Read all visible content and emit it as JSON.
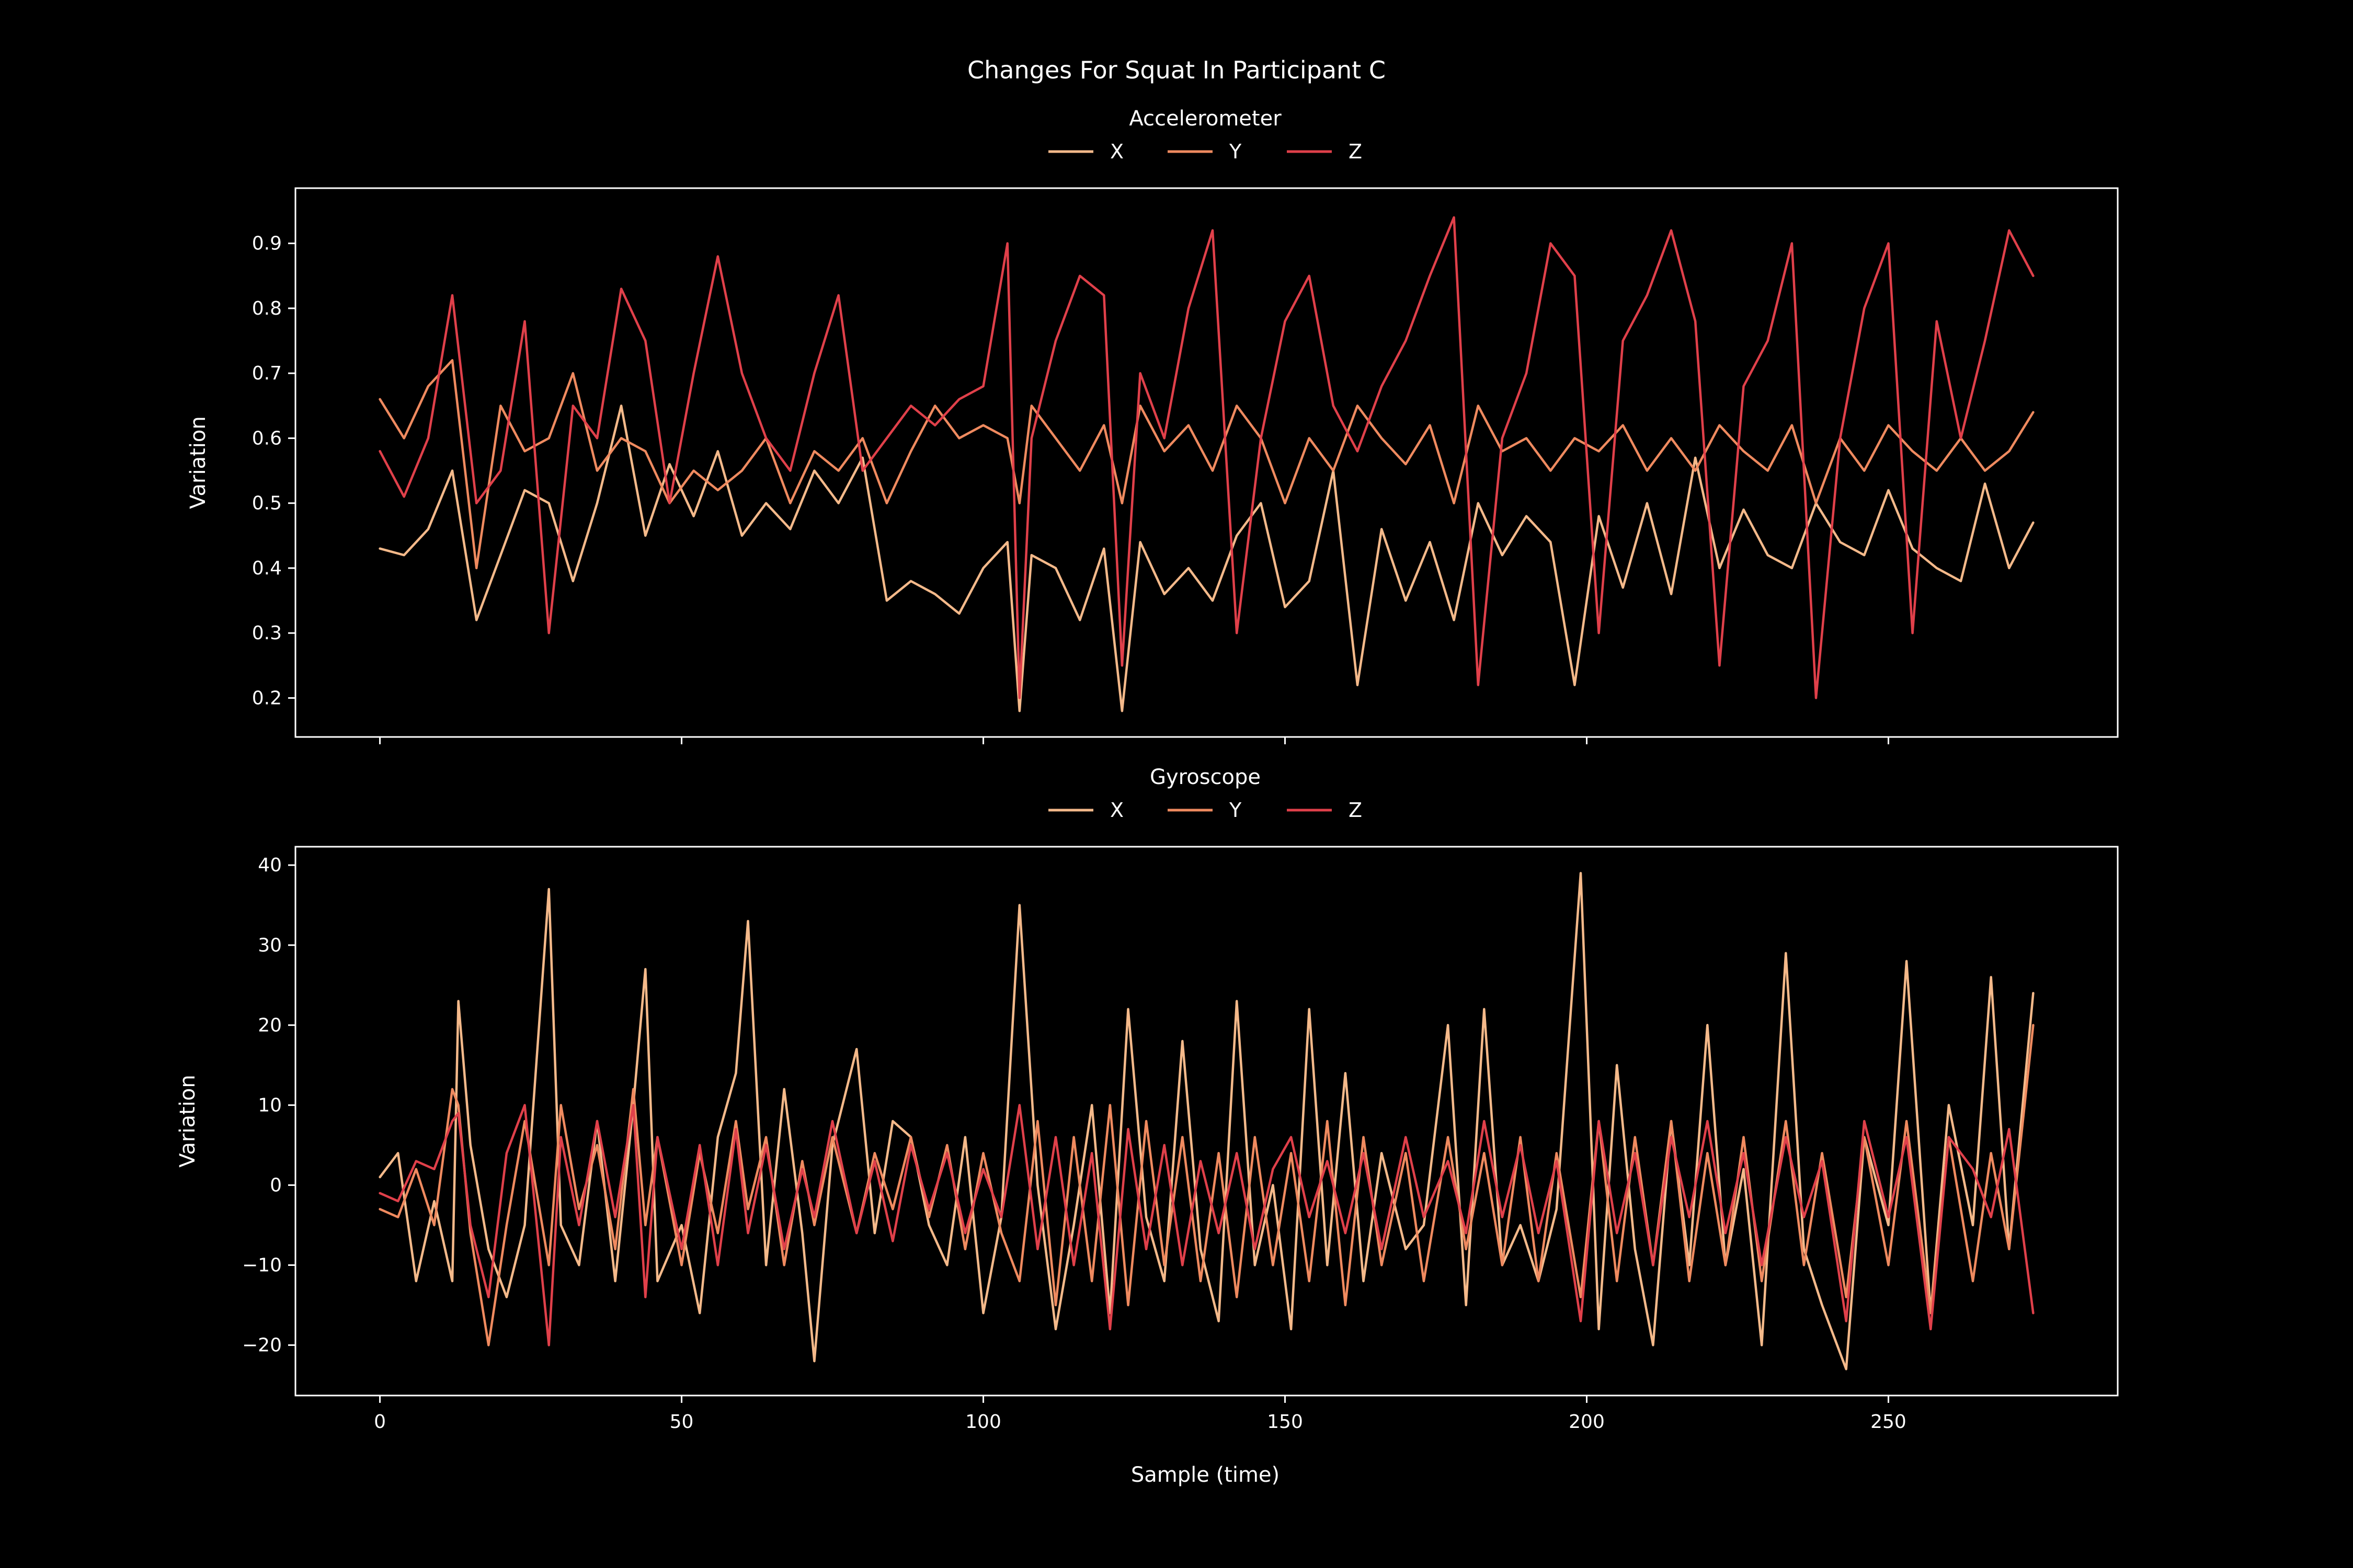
{
  "figure": {
    "title": "Changes For Squat In Participant C",
    "xlabel": "Sample (time)"
  },
  "chart_data": [
    {
      "type": "line",
      "title": "",
      "legend_title": "Accelerometer",
      "legend_placement": "top-center",
      "xlabel": "",
      "ylabel": "Variation",
      "xlim": [
        -14,
        288
      ],
      "ylim": [
        0.14,
        0.985
      ],
      "xticks": [
        0,
        50,
        100,
        150,
        200,
        250
      ],
      "yticks": [
        0.2,
        0.3,
        0.4,
        0.5,
        0.6,
        0.7,
        0.8,
        0.9
      ],
      "ytick_labels": [
        "0.2",
        "0.3",
        "0.4",
        "0.5",
        "0.6",
        "0.7",
        "0.8",
        "0.9"
      ],
      "show_xtick_labels": false,
      "grid": false,
      "series": [
        {
          "name": "X",
          "color": "#f4b98a",
          "x": [
            0,
            4,
            8,
            12,
            16,
            20,
            24,
            28,
            32,
            36,
            40,
            44,
            48,
            52,
            56,
            60,
            64,
            68,
            72,
            76,
            80,
            84,
            88,
            92,
            96,
            100,
            104,
            106,
            108,
            112,
            116,
            120,
            123,
            126,
            130,
            134,
            138,
            142,
            146,
            150,
            154,
            158,
            162,
            166,
            170,
            174,
            178,
            182,
            186,
            190,
            194,
            198,
            202,
            206,
            210,
            214,
            218,
            222,
            226,
            230,
            234,
            238,
            242,
            246,
            250,
            254,
            258,
            262,
            266,
            270,
            274
          ],
          "y": [
            0.43,
            0.42,
            0.46,
            0.55,
            0.32,
            0.42,
            0.52,
            0.5,
            0.38,
            0.5,
            0.65,
            0.45,
            0.56,
            0.48,
            0.58,
            0.45,
            0.5,
            0.46,
            0.55,
            0.5,
            0.57,
            0.35,
            0.38,
            0.36,
            0.33,
            0.4,
            0.44,
            0.18,
            0.42,
            0.4,
            0.32,
            0.43,
            0.18,
            0.44,
            0.36,
            0.4,
            0.35,
            0.45,
            0.5,
            0.34,
            0.38,
            0.55,
            0.22,
            0.46,
            0.35,
            0.44,
            0.32,
            0.5,
            0.42,
            0.48,
            0.44,
            0.22,
            0.48,
            0.37,
            0.5,
            0.36,
            0.57,
            0.4,
            0.49,
            0.42,
            0.4,
            0.5,
            0.44,
            0.42,
            0.52,
            0.43,
            0.4,
            0.38,
            0.53,
            0.4,
            0.47
          ]
        },
        {
          "name": "Y",
          "color": "#ef8a5f",
          "x": [
            0,
            4,
            8,
            12,
            16,
            20,
            24,
            28,
            32,
            36,
            40,
            44,
            48,
            52,
            56,
            60,
            64,
            68,
            72,
            76,
            80,
            84,
            88,
            92,
            96,
            100,
            104,
            106,
            108,
            112,
            116,
            120,
            123,
            126,
            130,
            134,
            138,
            142,
            146,
            150,
            154,
            158,
            162,
            166,
            170,
            174,
            178,
            182,
            186,
            190,
            194,
            198,
            202,
            206,
            210,
            214,
            218,
            222,
            226,
            230,
            234,
            238,
            242,
            246,
            250,
            254,
            258,
            262,
            266,
            270,
            274
          ],
          "y": [
            0.66,
            0.6,
            0.68,
            0.72,
            0.4,
            0.65,
            0.58,
            0.6,
            0.7,
            0.55,
            0.6,
            0.58,
            0.5,
            0.55,
            0.52,
            0.55,
            0.6,
            0.5,
            0.58,
            0.55,
            0.6,
            0.5,
            0.58,
            0.65,
            0.6,
            0.62,
            0.6,
            0.5,
            0.65,
            0.6,
            0.55,
            0.62,
            0.5,
            0.65,
            0.58,
            0.62,
            0.55,
            0.65,
            0.6,
            0.5,
            0.6,
            0.55,
            0.65,
            0.6,
            0.56,
            0.62,
            0.5,
            0.65,
            0.58,
            0.6,
            0.55,
            0.6,
            0.58,
            0.62,
            0.55,
            0.6,
            0.55,
            0.62,
            0.58,
            0.55,
            0.62,
            0.5,
            0.6,
            0.55,
            0.62,
            0.58,
            0.55,
            0.6,
            0.55,
            0.58,
            0.64
          ]
        },
        {
          "name": "Z",
          "color": "#e0404a",
          "x": [
            0,
            4,
            8,
            12,
            16,
            20,
            24,
            28,
            32,
            36,
            40,
            44,
            48,
            52,
            56,
            60,
            64,
            68,
            72,
            76,
            80,
            84,
            88,
            92,
            96,
            100,
            104,
            106,
            108,
            112,
            116,
            120,
            123,
            126,
            130,
            134,
            138,
            142,
            146,
            150,
            154,
            158,
            162,
            166,
            170,
            174,
            178,
            182,
            186,
            190,
            194,
            198,
            202,
            206,
            210,
            214,
            218,
            222,
            226,
            230,
            234,
            238,
            242,
            246,
            250,
            254,
            258,
            262,
            266,
            270,
            274
          ],
          "y": [
            0.58,
            0.51,
            0.6,
            0.82,
            0.5,
            0.55,
            0.78,
            0.3,
            0.65,
            0.6,
            0.83,
            0.75,
            0.5,
            0.7,
            0.88,
            0.7,
            0.6,
            0.55,
            0.7,
            0.82,
            0.55,
            0.6,
            0.65,
            0.62,
            0.66,
            0.68,
            0.9,
            0.2,
            0.6,
            0.75,
            0.85,
            0.82,
            0.25,
            0.7,
            0.6,
            0.8,
            0.92,
            0.3,
            0.6,
            0.78,
            0.85,
            0.65,
            0.58,
            0.68,
            0.75,
            0.85,
            0.94,
            0.22,
            0.6,
            0.7,
            0.9,
            0.85,
            0.3,
            0.75,
            0.82,
            0.92,
            0.78,
            0.25,
            0.68,
            0.75,
            0.9,
            0.2,
            0.6,
            0.8,
            0.9,
            0.3,
            0.78,
            0.6,
            0.75,
            0.92,
            0.85
          ]
        }
      ]
    },
    {
      "type": "line",
      "title": "",
      "legend_title": "Gyroscope",
      "legend_placement": "top-center",
      "xlabel": "Sample (time)",
      "ylabel": "Variation",
      "xlim": [
        -14,
        288
      ],
      "ylim": [
        -26.3,
        42.3
      ],
      "xticks": [
        0,
        50,
        100,
        150,
        200,
        250
      ],
      "yticks": [
        -20,
        -10,
        0,
        10,
        20,
        30,
        40
      ],
      "ytick_labels": [
        "−20",
        "−10",
        "0",
        "10",
        "20",
        "30",
        "40"
      ],
      "show_xtick_labels": true,
      "grid": false,
      "series": [
        {
          "name": "X",
          "color": "#f4b98a",
          "x": [
            0,
            3,
            6,
            9,
            12,
            13,
            15,
            18,
            21,
            24,
            28,
            30,
            33,
            36,
            39,
            42,
            44,
            46,
            50,
            53,
            56,
            59,
            61,
            64,
            67,
            70,
            72,
            75,
            79,
            82,
            85,
            88,
            91,
            94,
            97,
            100,
            103,
            106,
            109,
            112,
            115,
            118,
            121,
            124,
            127,
            130,
            133,
            136,
            139,
            142,
            145,
            148,
            151,
            154,
            157,
            160,
            163,
            166,
            170,
            173,
            177,
            180,
            183,
            186,
            189,
            192,
            195,
            199,
            202,
            205,
            208,
            211,
            214,
            217,
            220,
            223,
            226,
            229,
            233,
            236,
            239,
            243,
            246,
            250,
            253,
            257,
            260,
            264,
            267,
            270,
            274
          ],
          "y": [
            1,
            4,
            -12,
            -2,
            -12,
            23,
            5,
            -8,
            -14,
            -5,
            37,
            -5,
            -10,
            8,
            -12,
            10,
            27,
            -12,
            -5,
            -16,
            6,
            14,
            33,
            -10,
            12,
            -6,
            -22,
            5,
            17,
            -6,
            8,
            6,
            -5,
            -10,
            6,
            -16,
            -4,
            35,
            0,
            -18,
            -5,
            10,
            -16,
            22,
            -4,
            -12,
            18,
            -8,
            -17,
            23,
            -10,
            0,
            -18,
            22,
            -10,
            14,
            -12,
            4,
            -8,
            -5,
            20,
            -15,
            22,
            -10,
            -5,
            -12,
            -3,
            39,
            -18,
            15,
            -8,
            -20,
            8,
            -10,
            20,
            -10,
            2,
            -20,
            29,
            -8,
            -15,
            -23,
            6,
            -5,
            28,
            -16,
            10,
            -5,
            26,
            -8,
            24
          ]
        },
        {
          "name": "Y",
          "color": "#ef8a5f",
          "x": [
            0,
            3,
            6,
            9,
            12,
            13,
            15,
            18,
            21,
            24,
            28,
            30,
            33,
            36,
            39,
            42,
            44,
            46,
            50,
            53,
            56,
            59,
            61,
            64,
            67,
            70,
            72,
            75,
            79,
            82,
            85,
            88,
            91,
            94,
            97,
            100,
            103,
            106,
            109,
            112,
            115,
            118,
            121,
            124,
            127,
            130,
            133,
            136,
            139,
            142,
            145,
            148,
            151,
            154,
            157,
            160,
            163,
            166,
            170,
            173,
            177,
            180,
            183,
            186,
            189,
            192,
            195,
            199,
            202,
            205,
            208,
            211,
            214,
            217,
            220,
            223,
            226,
            229,
            233,
            236,
            239,
            243,
            246,
            250,
            253,
            257,
            260,
            264,
            267,
            270,
            274
          ],
          "y": [
            -3,
            -4,
            2,
            -5,
            12,
            10,
            -6,
            -20,
            -5,
            8,
            -10,
            10,
            -3,
            5,
            -8,
            12,
            -5,
            6,
            -10,
            4,
            -6,
            8,
            -3,
            6,
            -10,
            3,
            -5,
            6,
            -6,
            4,
            -3,
            6,
            -4,
            5,
            -8,
            4,
            -6,
            -12,
            8,
            -15,
            6,
            -12,
            10,
            -15,
            8,
            -10,
            6,
            -12,
            4,
            -14,
            6,
            -10,
            4,
            -12,
            8,
            -15,
            6,
            -10,
            4,
            -12,
            6,
            -8,
            4,
            -10,
            6,
            -12,
            4,
            -14,
            8,
            -12,
            6,
            -10,
            8,
            -12,
            4,
            -10,
            6,
            -12,
            8,
            -10,
            4,
            -14,
            6,
            -10,
            8,
            -16,
            6,
            -12,
            4,
            -8,
            20
          ]
        },
        {
          "name": "Z",
          "color": "#e0404a",
          "x": [
            0,
            3,
            6,
            9,
            12,
            13,
            15,
            18,
            21,
            24,
            28,
            30,
            33,
            36,
            39,
            42,
            44,
            46,
            50,
            53,
            56,
            59,
            61,
            64,
            67,
            70,
            72,
            75,
            79,
            82,
            85,
            88,
            91,
            94,
            97,
            100,
            103,
            106,
            109,
            112,
            115,
            118,
            121,
            124,
            127,
            130,
            133,
            136,
            139,
            142,
            145,
            148,
            151,
            154,
            157,
            160,
            163,
            166,
            170,
            173,
            177,
            180,
            183,
            186,
            189,
            192,
            195,
            199,
            202,
            205,
            208,
            211,
            214,
            217,
            220,
            223,
            226,
            229,
            233,
            236,
            239,
            243,
            246,
            250,
            253,
            257,
            260,
            264,
            267,
            270,
            274
          ],
          "y": [
            -1,
            -2,
            3,
            2,
            8,
            9,
            -5,
            -14,
            4,
            10,
            -20,
            6,
            -5,
            8,
            -4,
            10,
            -14,
            6,
            -8,
            5,
            -10,
            7,
            -6,
            5,
            -8,
            2,
            -4,
            8,
            -6,
            3,
            -7,
            5,
            -3,
            4,
            -6,
            2,
            -4,
            10,
            -8,
            6,
            -10,
            4,
            -18,
            7,
            -8,
            5,
            -10,
            3,
            -6,
            4,
            -8,
            2,
            6,
            -4,
            3,
            -6,
            4,
            -8,
            6,
            -4,
            3,
            -6,
            8,
            -4,
            5,
            -6,
            3,
            -17,
            8,
            -6,
            4,
            -10,
            6,
            -4,
            8,
            -6,
            4,
            -10,
            6,
            -4,
            3,
            -17,
            8,
            -4,
            6,
            -18,
            6,
            2,
            -4,
            7,
            -16
          ]
        }
      ]
    }
  ]
}
